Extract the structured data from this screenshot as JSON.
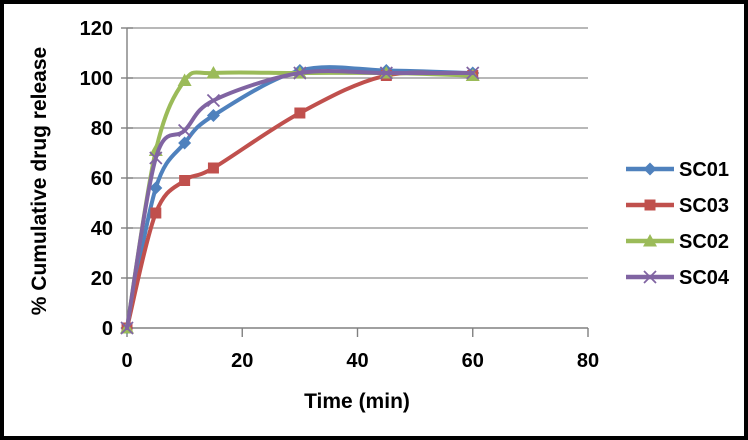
{
  "chart_data": {
    "type": "line",
    "title": "",
    "xlabel": "Time (min)",
    "ylabel": "% Cumulative drug release",
    "x": [
      0,
      5,
      10,
      15,
      30,
      45,
      60
    ],
    "series": [
      {
        "name": "SC01",
        "color": "#4F81BD",
        "marker": "diamond",
        "values": [
          0,
          56,
          74,
          85,
          103,
          103,
          102
        ]
      },
      {
        "name": "SC03",
        "color": "#C0504D",
        "marker": "square",
        "values": [
          0,
          46,
          59,
          64,
          86,
          101,
          101
        ]
      },
      {
        "name": "SC02",
        "color": "#9BBB59",
        "marker": "triangle",
        "values": [
          0,
          71,
          99,
          102,
          102,
          102,
          101
        ]
      },
      {
        "name": "SC04",
        "color": "#8064A2",
        "marker": "x",
        "values": [
          0,
          68,
          79,
          91,
          102,
          102,
          102
        ]
      }
    ],
    "legend": [
      "SC01",
      "SC03",
      "SC02",
      "SC04"
    ],
    "legend_position": "right",
    "xlim": [
      0,
      80
    ],
    "ylim": [
      0,
      120
    ],
    "xticks": [
      0,
      20,
      40,
      60,
      80
    ],
    "yticks": [
      0,
      20,
      40,
      60,
      80,
      100,
      120
    ],
    "grid": "horizontal",
    "smoothed": true,
    "gridline_color": "#8E8E8E",
    "axis_color": "#808080",
    "text_color": "#000000",
    "background": "#FFFFFF",
    "frame_color": "#000000"
  }
}
